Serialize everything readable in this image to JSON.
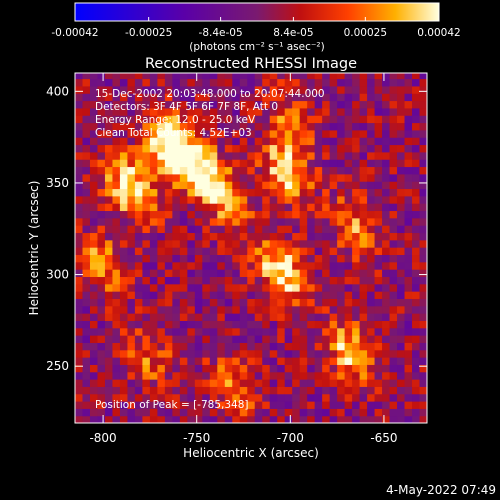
{
  "chart_data": {
    "type": "heatmap",
    "title": "Reconstructed RHESSI Image",
    "xlabel": "Heliocentric X (arcsec)",
    "ylabel": "Heliocentric Y (arcsec)",
    "xlim": [
      -815,
      -627
    ],
    "ylim": [
      219,
      410
    ],
    "x_ticks": [
      "-800",
      "-750",
      "-700",
      "-650"
    ],
    "x_tick_values": [
      -800,
      -750,
      -700,
      -650
    ],
    "y_ticks": [
      "250",
      "300",
      "350",
      "400"
    ],
    "y_tick_values": [
      250,
      300,
      350,
      400
    ],
    "colorbar": {
      "ticks": [
        "-0.00042",
        "-0.00025",
        "-8.4e-05",
        "8.4e-05",
        "0.00025",
        "0.00042"
      ],
      "tick_values": [
        -0.00042,
        -0.00025,
        -8.4e-05,
        8.4e-05,
        0.00025,
        0.00042
      ],
      "range": [
        -0.00042,
        0.00042
      ],
      "units": "(photons cm⁻² s⁻¹ asec⁻²)"
    },
    "annotations": [
      "15-Dec-2002 20:03:48.000 to 20:07:44.000",
      "Detectors: 3F 4F 5F 6F 7F 8F, Att 0",
      "Energy Range: 12.0 - 25.0 keV",
      "Clean    Total Counts: 4.52E+03"
    ],
    "peak": {
      "label": "Position of Peak = [-785,348]",
      "x": -785,
      "y": 348
    },
    "bright_sources": [
      {
        "x": -785,
        "y": 348,
        "value": 0.00042
      },
      {
        "x": -765,
        "y": 372,
        "value": 0.0004
      },
      {
        "x": -752,
        "y": 360,
        "value": 0.00038
      },
      {
        "x": -702,
        "y": 356,
        "value": 0.00038
      },
      {
        "x": -705,
        "y": 303,
        "value": 0.0004
      },
      {
        "x": -735,
        "y": 343,
        "value": 0.0003
      },
      {
        "x": -667,
        "y": 257,
        "value": 0.00034
      },
      {
        "x": -800,
        "y": 305,
        "value": 0.00026
      },
      {
        "x": -665,
        "y": 327,
        "value": 0.00025
      },
      {
        "x": -700,
        "y": 385,
        "value": 0.0002
      },
      {
        "x": -775,
        "y": 255,
        "value": 0.0002
      },
      {
        "x": -730,
        "y": 240,
        "value": 0.00022
      }
    ],
    "grid": false
  },
  "timestamp": "4-May-2022 07:49"
}
